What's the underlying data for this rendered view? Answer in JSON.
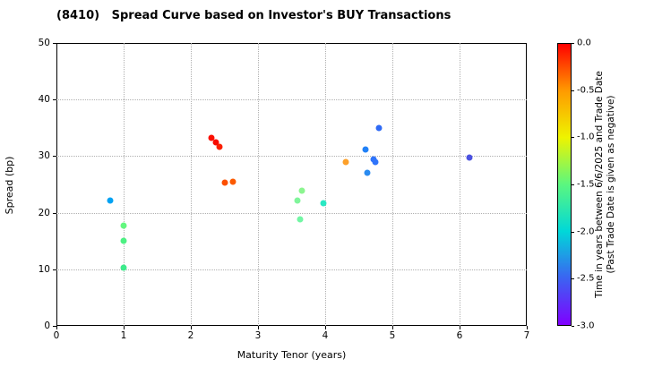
{
  "chart_data": {
    "type": "scatter",
    "title": "(8410)   Spread Curve based on Investor's BUY Transactions",
    "xlabel": "Maturity Tenor (years)",
    "ylabel": "Spread (bp)",
    "xlim": [
      0,
      7
    ],
    "ylim": [
      0,
      50
    ],
    "xticks": [
      0,
      1,
      2,
      3,
      4,
      5,
      6,
      7
    ],
    "xtick_labels": [
      "0",
      "1",
      "2",
      "3",
      "4",
      "5",
      "6",
      "7"
    ],
    "yticks": [
      0,
      10,
      20,
      30,
      40,
      50
    ],
    "ytick_labels": [
      "0",
      "10",
      "20",
      "30",
      "40",
      "50"
    ],
    "grid": true,
    "grid_color": "#b0b0b0",
    "colorbar": {
      "label_line1": "Time in years between 6/6/2025 and Trade Date",
      "label_line2": "(Past Trade Date is given as negative)",
      "vmax": 0.0,
      "vmin": -3.0,
      "ticks": [
        0.0,
        -0.5,
        -1.0,
        -1.5,
        -2.0,
        -2.5,
        -3.0
      ],
      "tick_labels": [
        "0.0",
        "-0.5",
        "-1.0",
        "-1.5",
        "-2.0",
        "-2.5",
        "-3.0"
      ],
      "gradient_top_to_bottom": [
        "#ff0000",
        "#ff9a00",
        "#eef400",
        "#5bf77f",
        "#00d8d8",
        "#3b63f2",
        "#8000ff"
      ]
    },
    "points": [
      {
        "x": 0.8,
        "y": 22.2,
        "t": -2.05,
        "color": "#00a2f3"
      },
      {
        "x": 1.0,
        "y": 17.8,
        "t": -1.45,
        "color": "#63f77f"
      },
      {
        "x": 1.0,
        "y": 15.0,
        "t": -1.5,
        "color": "#4df183"
      },
      {
        "x": 1.0,
        "y": 10.3,
        "t": -1.55,
        "color": "#3deb8b"
      },
      {
        "x": 2.3,
        "y": 33.2,
        "t": -0.05,
        "color": "#fb0f00"
      },
      {
        "x": 2.37,
        "y": 32.4,
        "t": -0.08,
        "color": "#f70b00"
      },
      {
        "x": 2.42,
        "y": 31.7,
        "t": -0.12,
        "color": "#fb1f00"
      },
      {
        "x": 2.5,
        "y": 25.3,
        "t": -0.3,
        "color": "#fc4f00"
      },
      {
        "x": 2.62,
        "y": 25.5,
        "t": -0.33,
        "color": "#fc5a00"
      },
      {
        "x": 3.58,
        "y": 22.2,
        "t": -1.35,
        "color": "#80f59b"
      },
      {
        "x": 3.65,
        "y": 23.9,
        "t": -1.32,
        "color": "#8bf58f"
      },
      {
        "x": 3.62,
        "y": 18.9,
        "t": -1.4,
        "color": "#72f6a4"
      },
      {
        "x": 3.97,
        "y": 21.7,
        "t": -1.75,
        "color": "#29e8c3"
      },
      {
        "x": 4.3,
        "y": 29.0,
        "t": -0.9,
        "color": "#fda029"
      },
      {
        "x": 4.6,
        "y": 31.2,
        "t": -2.25,
        "color": "#2181f7"
      },
      {
        "x": 4.62,
        "y": 27.1,
        "t": -2.2,
        "color": "#2a8bf0"
      },
      {
        "x": 4.72,
        "y": 29.4,
        "t": -2.35,
        "color": "#2f74fb"
      },
      {
        "x": 4.75,
        "y": 28.9,
        "t": -2.35,
        "color": "#2f74fb"
      },
      {
        "x": 4.8,
        "y": 35.0,
        "t": -2.4,
        "color": "#2f6af5"
      },
      {
        "x": 6.15,
        "y": 29.7,
        "t": -2.55,
        "color": "#4b52e0"
      }
    ]
  }
}
